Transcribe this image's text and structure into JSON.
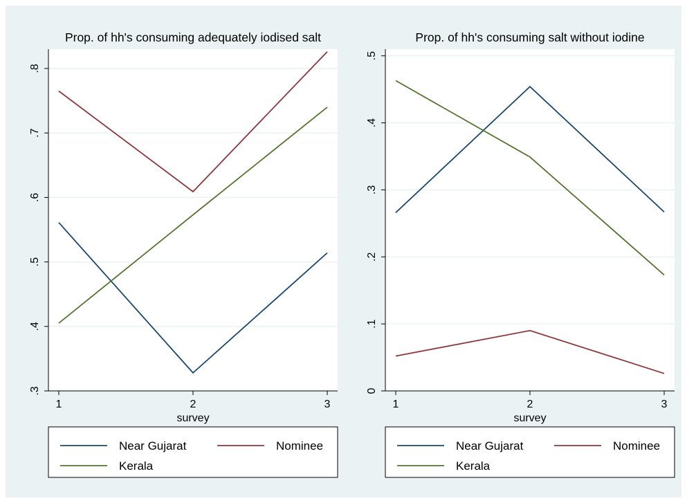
{
  "colors": {
    "background": "#eaf2f3",
    "plot_area": "#ffffff",
    "grid": "#eaf2f3",
    "near_gujarat": "#1a476f",
    "nominee": "#90353b",
    "kerala": "#55752f"
  },
  "chart_data": [
    {
      "type": "line",
      "title": "Prop. of hh's consuming adequately iodised salt",
      "xlabel": "survey",
      "ylabel": "",
      "x": [
        1,
        2,
        3
      ],
      "xticks": [
        "1",
        "2",
        "3"
      ],
      "xlim": [
        1,
        3
      ],
      "yticks": [
        0.3,
        0.4,
        0.5,
        0.6,
        0.7,
        0.8
      ],
      "ytick_labels": [
        ".3",
        ".4",
        ".5",
        ".6",
        ".7",
        ".8"
      ],
      "ylim": [
        0.3,
        0.83
      ],
      "grid": true,
      "legend": "bottom",
      "series": [
        {
          "name": "Near Gujarat",
          "color": "#1a476f",
          "values": [
            0.561,
            0.328,
            0.514
          ]
        },
        {
          "name": "Nominee",
          "color": "#90353b",
          "values": [
            0.765,
            0.609,
            0.826
          ]
        },
        {
          "name": "Kerala",
          "color": "#55752f",
          "values": [
            0.405,
            0.573,
            0.74
          ]
        }
      ]
    },
    {
      "type": "line",
      "title": "Prop. of hh's consuming salt without iodine",
      "xlabel": "survey",
      "ylabel": "",
      "x": [
        1,
        2,
        3
      ],
      "xticks": [
        "1",
        "2",
        "3"
      ],
      "xlim": [
        1,
        3
      ],
      "yticks": [
        0,
        0.1,
        0.2,
        0.3,
        0.4,
        0.5
      ],
      "ytick_labels": [
        "0",
        ".1",
        ".2",
        ".3",
        ".4",
        ".5"
      ],
      "ylim": [
        0,
        0.51
      ],
      "grid": true,
      "legend": "bottom",
      "series": [
        {
          "name": "Near Gujarat",
          "color": "#1a476f",
          "values": [
            0.266,
            0.454,
            0.267
          ]
        },
        {
          "name": "Nominee",
          "color": "#90353b",
          "values": [
            0.052,
            0.09,
            0.026
          ]
        },
        {
          "name": "Kerala",
          "color": "#55752f",
          "values": [
            0.463,
            0.349,
            0.173
          ]
        }
      ]
    }
  ]
}
